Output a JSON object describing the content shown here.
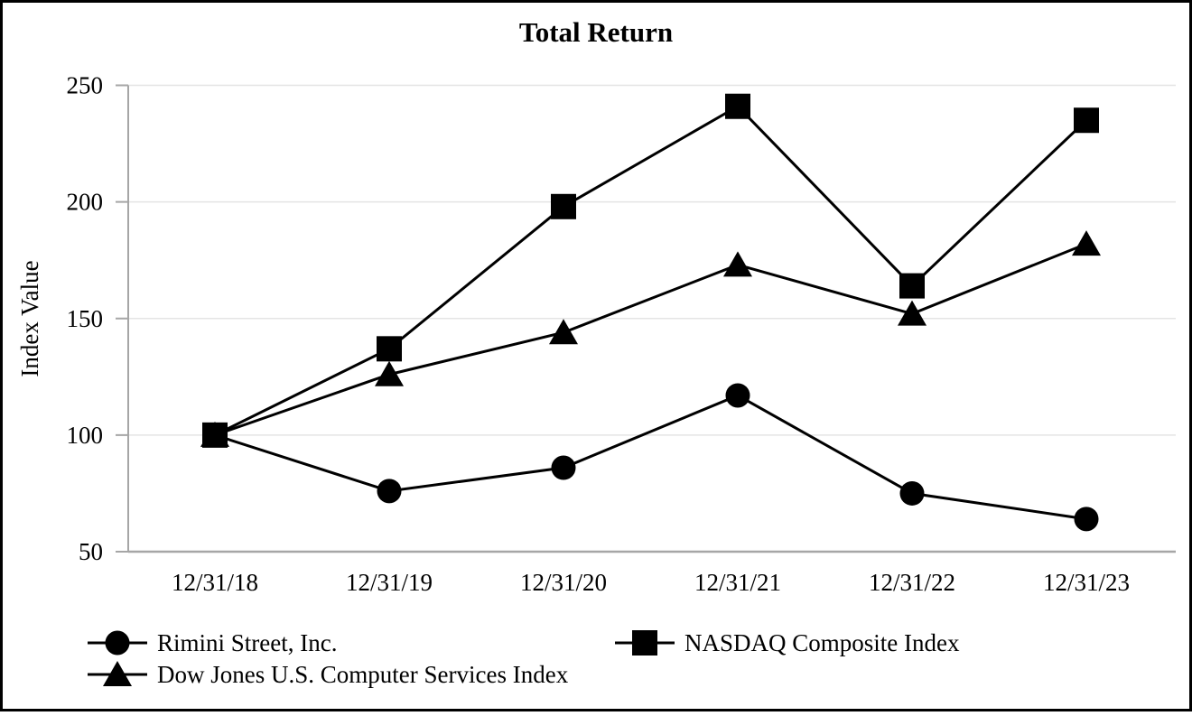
{
  "chart_data": {
    "type": "line",
    "title": "Total Return",
    "ylabel": "Index Value",
    "xlabel": "",
    "categories": [
      "12/31/18",
      "12/31/19",
      "12/31/20",
      "12/31/21",
      "12/31/22",
      "12/31/23"
    ],
    "series": [
      {
        "name": "Rimini Street, Inc.",
        "marker": "circle",
        "values": [
          100,
          76,
          86,
          117,
          75,
          64
        ]
      },
      {
        "name": "NASDAQ Composite Index",
        "marker": "square",
        "values": [
          100,
          137,
          198,
          241,
          164,
          235
        ]
      },
      {
        "name": "Dow Jones U.S. Computer Services Index",
        "marker": "triangle",
        "values": [
          100,
          126,
          144,
          173,
          152,
          182
        ]
      }
    ],
    "ylim": [
      50,
      250
    ],
    "yticks": [
      50,
      100,
      150,
      200,
      250
    ],
    "grid": true,
    "legend_position": "bottom",
    "colors": {
      "series": "#000000",
      "axis": "#a6a6a6",
      "gridline": "#e4e4e4",
      "border": "#000000",
      "text": "#000000",
      "background": "#ffffff"
    }
  }
}
